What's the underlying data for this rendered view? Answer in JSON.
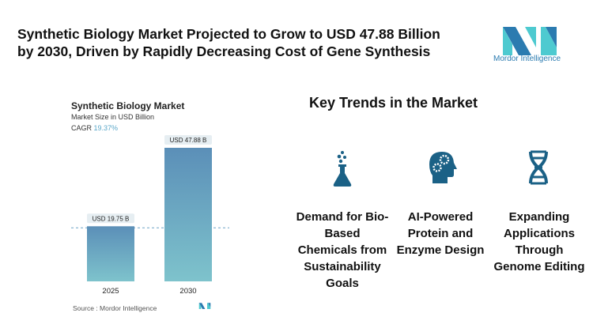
{
  "title": "Synthetic Biology Market Projected to Grow to USD 47.88 Billion by 2030, Driven by Rapidly Decreasing Cost of Gene Synthesis",
  "logo_text": "Mordor Intelligence",
  "colors": {
    "accent": "#1b6186",
    "logo_dark": "#2b7bb0",
    "logo_light": "#4ecad0",
    "bar_top": "#5b8fb8",
    "bar_bottom": "#7ec3cc"
  },
  "chart_data": {
    "type": "bar",
    "title": "Synthetic Biology Market",
    "subtitle": "Market Size in USD Billion",
    "cagr_label": "CAGR",
    "cagr_value": "19.37%",
    "categories": [
      "2025",
      "2030"
    ],
    "values": [
      19.75,
      47.88
    ],
    "data_labels": [
      "USD 19.75 B",
      "USD 47.88 B"
    ],
    "ylim": [
      0,
      50
    ],
    "grid": false,
    "reference_line": 19.75,
    "source": "Source :  Mordor Intelligence"
  },
  "key_trends": {
    "heading": "Key Trends in the Market",
    "items": [
      {
        "icon": "flask-icon",
        "label": "Demand for Bio-Based Chemicals from Sustainability Goals"
      },
      {
        "icon": "head-gears-icon",
        "label": "AI-Powered Protein and Enzyme Design"
      },
      {
        "icon": "dna-icon",
        "label": "Expanding Applications Through Genome Editing"
      }
    ]
  }
}
